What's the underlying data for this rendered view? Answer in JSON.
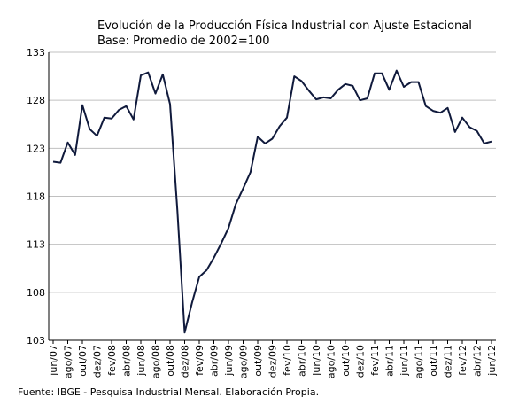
{
  "chart_data": {
    "type": "line",
    "title_lines": [
      "Evolución de la Producción Física Industrial con Ajuste Estacional",
      "Base: Promedio de 2002=100"
    ],
    "source": "Fuente: IBGE - Pesquisa Industrial Mensal. Elaboración Propia.",
    "xlabel": "",
    "ylabel": "",
    "ylim": [
      103,
      133
    ],
    "yticks": [
      "133",
      "128",
      "123",
      "118",
      "113",
      "108",
      "103"
    ],
    "grid": true,
    "colors": {
      "line": "#101a3c",
      "grid": "#c0c0c0",
      "axis": "#000000"
    },
    "x": [
      "jun/07",
      "jul/07",
      "ago/07",
      "sep/07",
      "out/07",
      "nov/07",
      "dez/07",
      "jan/08",
      "fev/08",
      "mar/08",
      "abr/08",
      "mai/08",
      "jun/08",
      "jul/08",
      "ago/08",
      "sep/08",
      "out/08",
      "nov/08",
      "dez/08",
      "jan/09",
      "fev/09",
      "mar/09",
      "abr/09",
      "mai/09",
      "jun/09",
      "jul/09",
      "ago/09",
      "sep/09",
      "out/09",
      "nov/09",
      "dez/09",
      "jan/10",
      "fev/10",
      "mar/10",
      "abr/10",
      "mai/10",
      "jun/10",
      "jul/10",
      "ago/10",
      "sep/10",
      "out/10",
      "nov/10",
      "dez/10",
      "jan/11",
      "fev/11",
      "mar/11",
      "abr/11",
      "mai/11",
      "jun/11",
      "jul/11",
      "ago/11",
      "sep/11",
      "out/11",
      "nov/11",
      "dez/11",
      "jan/12",
      "fev/12",
      "mar/12",
      "abr/12",
      "mai/12",
      "jun/12"
    ],
    "xtick_labels": [
      "jun/07",
      "ago/07",
      "out/07",
      "dez/07",
      "fev/08",
      "abr/08",
      "jun/08",
      "ago/08",
      "out/08",
      "dez/08",
      "fev/09",
      "abr/09",
      "jun/09",
      "ago/09",
      "out/09",
      "dez/09",
      "fev/10",
      "abr/10",
      "jun/10",
      "ago/10",
      "out/10",
      "dez/10",
      "fev/11",
      "abr/11",
      "jun/11",
      "ago/11",
      "out/11",
      "dez/11",
      "fev/12",
      "abr/12",
      "jun/12"
    ],
    "series": [
      {
        "values": [
          121.6,
          121.5,
          123.6,
          122.3,
          127.5,
          125.0,
          124.3,
          126.2,
          126.1,
          127.0,
          127.4,
          126.0,
          130.6,
          130.9,
          128.7,
          130.7,
          127.6,
          116.5,
          103.8,
          106.9,
          109.6,
          110.3,
          111.6,
          113.1,
          114.7,
          117.2,
          118.8,
          120.5,
          124.2,
          123.5,
          124.0,
          125.3,
          126.2,
          130.5,
          130.0,
          129.0,
          128.1,
          128.3,
          128.2,
          129.1,
          129.7,
          129.5,
          128.0,
          128.2,
          130.8,
          130.8,
          129.1,
          131.1,
          129.4,
          129.9,
          129.9,
          127.4,
          126.9,
          126.7,
          127.2,
          124.7,
          126.2,
          125.2,
          124.8,
          123.5,
          123.7
        ]
      }
    ]
  }
}
